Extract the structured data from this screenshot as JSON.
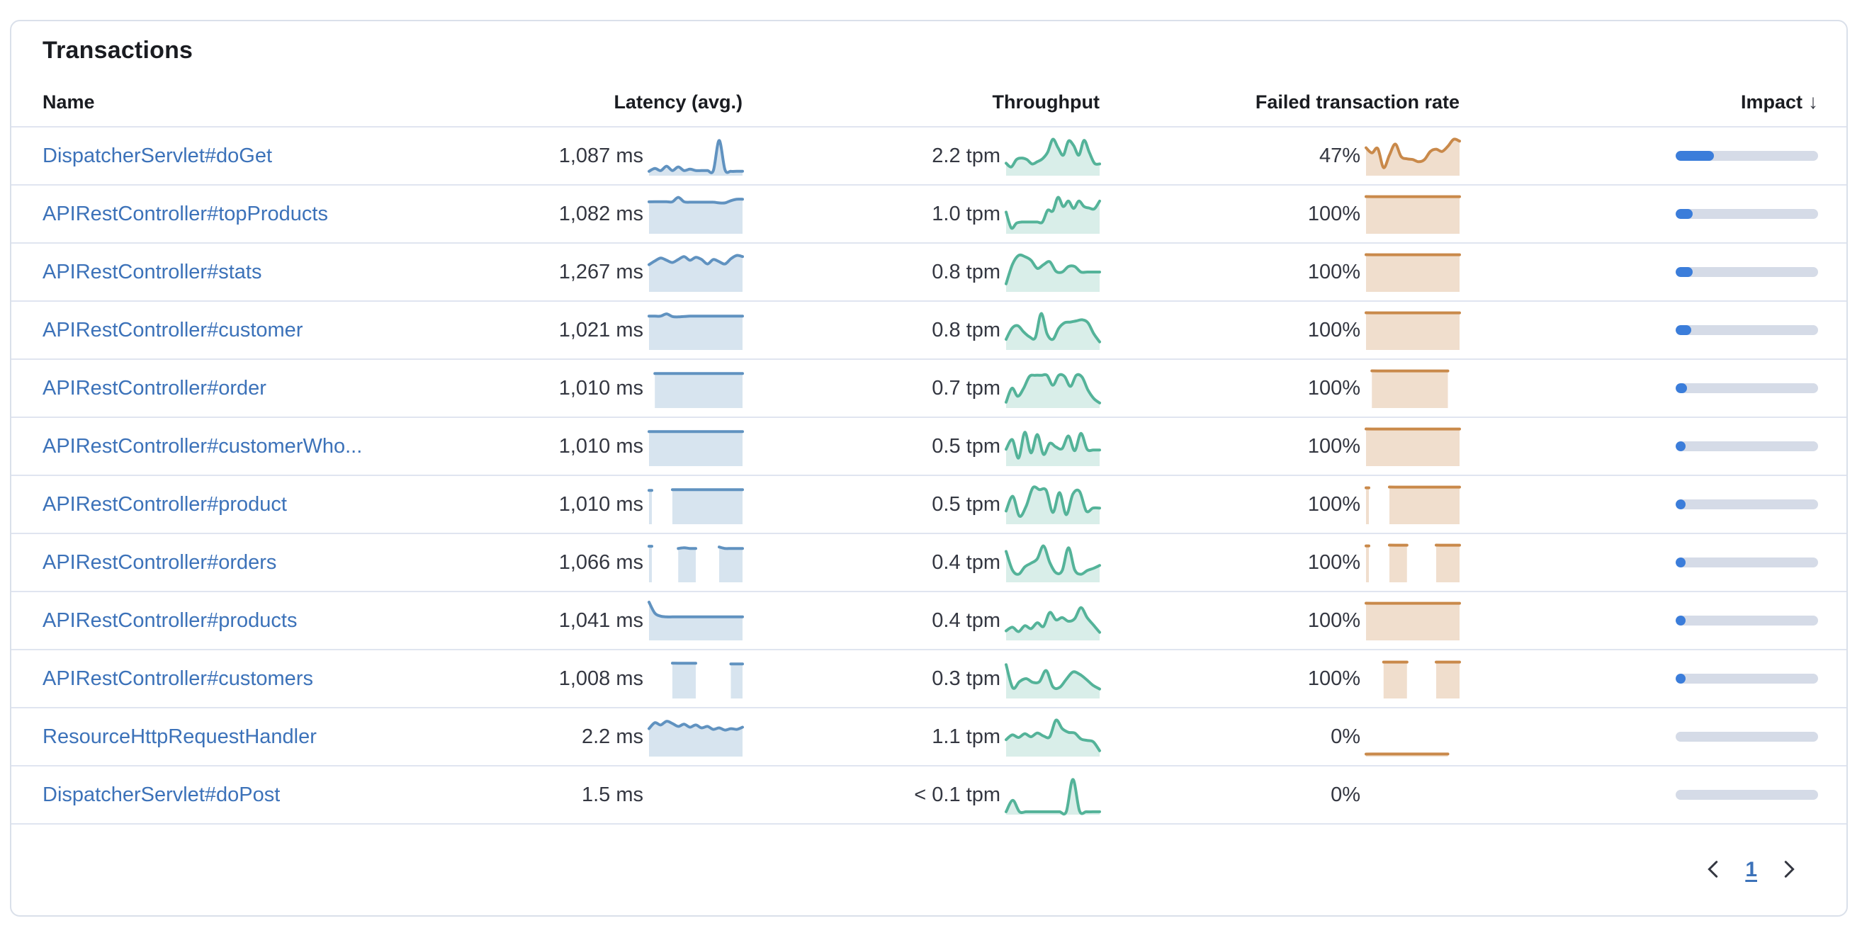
{
  "panel": {
    "title": "Transactions"
  },
  "table": {
    "columns": {
      "name": "Name",
      "latency": "Latency (avg.)",
      "throughput": "Throughput",
      "failed_rate": "Failed transaction rate",
      "impact": "Impact"
    },
    "sort": {
      "column": "impact",
      "direction": "desc",
      "icon": "↓"
    }
  },
  "colors": {
    "link": "#3c72b9",
    "spark_blue_line": "#6092C0",
    "spark_blue_fill": "rgba(96,146,192,0.25)",
    "spark_green_line": "#54B399",
    "spark_green_fill": "rgba(84,179,153,0.22)",
    "spark_orange_line": "#C9894A",
    "spark_orange_fill": "rgba(201,137,74,0.28)",
    "impact_fill": "#3b7dda",
    "impact_track": "#d5dbe7"
  },
  "chart_data": {
    "type": "table",
    "note": "sparkline values normalized 0-1, null = gap",
    "rows": [
      {
        "name": "DispatcherServlet#doGet",
        "latency": "1,087 ms",
        "throughput": "2.2 tpm",
        "failed_rate": "47%",
        "impact_pct": 27,
        "latency_spark": [
          0.08,
          0.16,
          0.1,
          0.22,
          0.1,
          0.2,
          0.1,
          0.14,
          0.1,
          0.1,
          0.1,
          0.1,
          0.92,
          0.12,
          0.08,
          0.08,
          0.08
        ],
        "throughput_spark": [
          0.3,
          0.2,
          0.4,
          0.44,
          0.4,
          0.28,
          0.34,
          0.42,
          0.6,
          0.95,
          0.72,
          0.52,
          0.9,
          0.78,
          0.52,
          0.92,
          0.6,
          0.3,
          0.28
        ],
        "failed_spark": [
          0.72,
          0.58,
          0.7,
          0.18,
          0.52,
          0.82,
          0.48,
          0.42,
          0.4,
          0.34,
          0.4,
          0.62,
          0.68,
          0.62,
          0.76,
          0.95,
          0.9
        ]
      },
      {
        "name": "APIRestController#topProducts",
        "latency": "1,082 ms",
        "throughput": "1.0 tpm",
        "failed_rate": "100%",
        "impact_pct": 12,
        "latency_spark": [
          0.83,
          0.83,
          0.83,
          0.83,
          0.83,
          0.95,
          0.83,
          0.82,
          0.82,
          0.82,
          0.82,
          0.82,
          0.8,
          0.8,
          0.86,
          0.9,
          0.9
        ],
        "throughput_spark": [
          0.55,
          0.12,
          0.25,
          0.28,
          0.28,
          0.28,
          0.28,
          0.28,
          0.6,
          0.58,
          0.95,
          0.7,
          0.85,
          0.65,
          0.85,
          0.7,
          0.66,
          0.64,
          0.85
        ],
        "failed_spark": [
          0.97,
          0.97,
          0.97,
          0.97,
          0.97,
          0.97,
          0.97,
          0.97,
          0.97,
          0.97,
          0.97,
          0.97,
          0.97,
          0.97,
          0.97,
          0.97,
          0.97
        ]
      },
      {
        "name": "APIRestController#stats",
        "latency": "1,267 ms",
        "throughput": "0.8 tpm",
        "failed_rate": "100%",
        "impact_pct": 12,
        "latency_spark": [
          0.7,
          0.8,
          0.88,
          0.82,
          0.76,
          0.84,
          0.92,
          0.82,
          0.9,
          0.84,
          0.72,
          0.84,
          0.78,
          0.72,
          0.86,
          0.95,
          0.92
        ],
        "throughput_spark": [
          0.18,
          0.7,
          0.95,
          0.92,
          0.82,
          0.6,
          0.7,
          0.78,
          0.52,
          0.5,
          0.65,
          0.65,
          0.5,
          0.5,
          0.5,
          0.5
        ],
        "failed_spark": [
          0.97,
          0.97,
          0.97,
          0.97,
          0.97,
          0.97,
          0.97,
          0.97,
          0.97,
          0.97,
          0.97,
          0.97,
          0.97,
          0.97,
          0.97,
          0.97,
          0.97
        ]
      },
      {
        "name": "APIRestController#customer",
        "latency": "1,021 ms",
        "throughput": "0.8 tpm",
        "failed_rate": "100%",
        "impact_pct": 11,
        "latency_spark": [
          0.88,
          0.88,
          0.88,
          0.94,
          0.87,
          0.86,
          0.87,
          0.88,
          0.88,
          0.88,
          0.88,
          0.88,
          0.88,
          0.88,
          0.88,
          0.88,
          0.88
        ],
        "throughput_spark": [
          0.25,
          0.55,
          0.62,
          0.45,
          0.32,
          0.3,
          0.95,
          0.4,
          0.25,
          0.55,
          0.7,
          0.72,
          0.75,
          0.78,
          0.7,
          0.4,
          0.18
        ],
        "failed_spark": [
          0.97,
          0.97,
          0.97,
          0.97,
          0.97,
          0.97,
          0.97,
          0.97,
          0.97,
          0.97,
          0.97,
          0.97,
          0.97,
          0.97,
          0.97,
          0.97,
          0.97
        ]
      },
      {
        "name": "APIRestController#order",
        "latency": "1,010 ms",
        "throughput": "0.7 tpm",
        "failed_rate": "100%",
        "impact_pct": 8,
        "latency_spark": [
          null,
          0.9,
          0.9,
          0.9,
          0.9,
          0.9,
          0.9,
          0.9,
          0.9,
          0.9,
          0.9,
          0.9,
          0.9,
          0.9,
          0.9,
          0.9,
          0.9
        ],
        "throughput_spark": [
          0.12,
          0.5,
          0.28,
          0.5,
          0.82,
          0.85,
          0.85,
          0.85,
          0.58,
          0.85,
          0.82,
          0.55,
          0.85,
          0.8,
          0.45,
          0.22,
          0.1
        ],
        "failed_spark": [
          null,
          0.97,
          0.97,
          0.97,
          0.97,
          0.97,
          0.97,
          0.97,
          0.97,
          0.97,
          0.97,
          0.97,
          0.97,
          0.97,
          0.97,
          null,
          null
        ]
      },
      {
        "name": "APIRestController#customerWho...",
        "latency": "1,010 ms",
        "throughput": "0.5 tpm",
        "failed_rate": "100%",
        "impact_pct": 7,
        "latency_spark": [
          0.9,
          0.9,
          0.9,
          0.9,
          0.9,
          0.9,
          0.9,
          0.9,
          0.9,
          0.9,
          0.9,
          0.9,
          0.9,
          0.9,
          0.9,
          0.9,
          0.9
        ],
        "throughput_spark": [
          0.42,
          0.68,
          0.18,
          0.88,
          0.32,
          0.82,
          0.28,
          0.58,
          0.48,
          0.44,
          0.78,
          0.38,
          0.85,
          0.42,
          0.4,
          0.4
        ],
        "failed_spark": [
          0.97,
          0.97,
          0.97,
          0.97,
          0.97,
          0.97,
          0.97,
          0.97,
          0.97,
          0.97,
          0.97,
          0.97,
          0.97,
          0.97,
          0.97,
          0.97,
          0.97
        ]
      },
      {
        "name": "APIRestController#product",
        "latency": "1,010 ms",
        "throughput": "0.5 tpm",
        "failed_rate": "100%",
        "impact_pct": 6,
        "latency_spark": [
          0.88,
          null,
          null,
          null,
          0.9,
          0.9,
          0.9,
          0.9,
          0.9,
          0.9,
          0.9,
          0.9,
          0.9,
          0.9,
          0.9,
          0.9,
          0.9
        ],
        "throughput_spark": [
          0.32,
          0.72,
          0.18,
          0.45,
          0.95,
          0.9,
          0.88,
          0.28,
          0.82,
          0.22,
          0.78,
          0.85,
          0.32,
          0.4,
          0.4
        ],
        "failed_spark": [
          0.95,
          null,
          null,
          null,
          0.97,
          0.97,
          0.97,
          0.97,
          0.97,
          0.97,
          0.97,
          0.97,
          0.97,
          0.97,
          0.97,
          0.97,
          0.97
        ]
      },
      {
        "name": "APIRestController#orders",
        "latency": "1,066 ms",
        "throughput": "0.4 tpm",
        "failed_rate": "100%",
        "impact_pct": 5,
        "latency_spark": [
          0.94,
          null,
          null,
          null,
          null,
          0.88,
          0.9,
          0.88,
          0.88,
          null,
          null,
          null,
          0.92,
          0.88,
          0.88,
          0.88,
          0.88
        ],
        "throughput_spark": [
          0.8,
          0.3,
          0.18,
          0.38,
          0.48,
          0.6,
          0.95,
          0.5,
          0.22,
          0.28,
          0.9,
          0.3,
          0.18,
          0.28,
          0.34,
          0.42
        ],
        "failed_spark": [
          0.95,
          null,
          null,
          null,
          0.97,
          0.97,
          0.97,
          0.97,
          null,
          null,
          null,
          null,
          0.97,
          0.97,
          0.97,
          0.97,
          0.97
        ]
      },
      {
        "name": "APIRestController#products",
        "latency": "1,041 ms",
        "throughput": "0.4 tpm",
        "failed_rate": "100%",
        "impact_pct": 6,
        "latency_spark": [
          1.0,
          0.7,
          0.62,
          0.6,
          0.6,
          0.6,
          0.6,
          0.6,
          0.6,
          0.6,
          0.6,
          0.6,
          0.6,
          0.6,
          0.6,
          0.6,
          0.6
        ],
        "throughput_spark": [
          0.22,
          0.32,
          0.2,
          0.36,
          0.28,
          0.44,
          0.34,
          0.72,
          0.52,
          0.58,
          0.48,
          0.55,
          0.85,
          0.58,
          0.38,
          0.18
        ],
        "failed_spark": [
          0.97,
          0.97,
          0.97,
          0.97,
          0.97,
          0.97,
          0.97,
          0.97,
          0.97,
          0.97,
          0.97,
          0.97,
          0.97,
          0.97,
          0.97,
          0.97,
          0.97
        ]
      },
      {
        "name": "APIRestController#customers",
        "latency": "1,008 ms",
        "throughput": "0.3 tpm",
        "failed_rate": "100%",
        "impact_pct": 5,
        "latency_spark": [
          null,
          null,
          null,
          null,
          0.92,
          0.92,
          0.92,
          0.92,
          0.92,
          null,
          null,
          null,
          null,
          null,
          0.9,
          0.9,
          0.9
        ],
        "throughput_spark": [
          0.88,
          0.25,
          0.42,
          0.5,
          0.4,
          0.42,
          0.72,
          0.28,
          0.26,
          0.48,
          0.68,
          0.62,
          0.48,
          0.32,
          0.22
        ],
        "failed_spark": [
          null,
          null,
          null,
          0.95,
          0.95,
          0.95,
          0.95,
          0.95,
          null,
          null,
          null,
          null,
          0.95,
          0.95,
          0.95,
          0.95,
          0.95
        ]
      },
      {
        "name": "ResourceHttpRequestHandler",
        "latency": "2.2 ms",
        "throughput": "1.1 tpm",
        "failed_rate": "0%",
        "impact_pct": 0,
        "latency_spark": [
          0.72,
          0.88,
          0.82,
          0.92,
          0.86,
          0.78,
          0.84,
          0.76,
          0.82,
          0.74,
          0.78,
          0.7,
          0.74,
          0.68,
          0.72,
          0.7,
          0.76
        ],
        "throughput_spark": [
          0.42,
          0.55,
          0.48,
          0.58,
          0.5,
          0.6,
          0.52,
          0.5,
          0.95,
          0.72,
          0.62,
          0.6,
          0.44,
          0.4,
          0.36,
          0.12
        ],
        "failed_spark": [
          0.03,
          0.03,
          0.03,
          0.03,
          0.03,
          0.03,
          0.03,
          0.03,
          0.03,
          0.03,
          0.03,
          0.03,
          0.03,
          0.03,
          0.03,
          null,
          null
        ]
      },
      {
        "name": "DispatcherServlet#doPost",
        "latency": "1.5 ms",
        "throughput": "< 0.1 tpm",
        "failed_rate": "0%",
        "impact_pct": 0,
        "latency_spark": null,
        "throughput_spark": [
          0.04,
          0.35,
          0.04,
          0.04,
          0.04,
          0.04,
          0.04,
          0.04,
          0.04,
          0.04,
          0.92,
          0.06,
          0.04,
          0.04,
          0.04
        ],
        "failed_spark": null
      }
    ]
  },
  "pagination": {
    "current_page": "1"
  }
}
